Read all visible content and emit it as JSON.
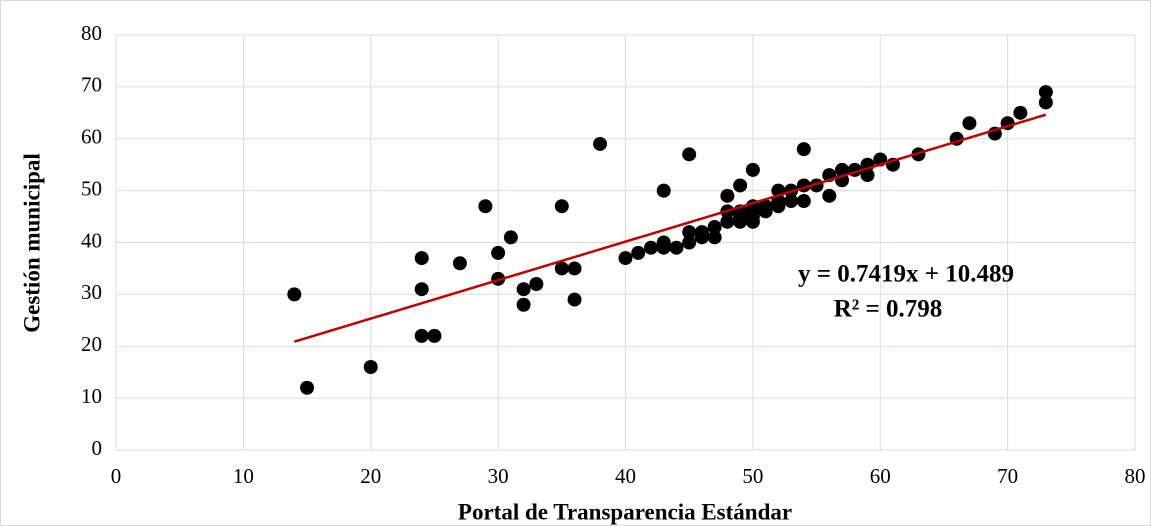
{
  "chart_data": {
    "type": "scatter",
    "x_label": "Portal de Transparencia Estándar",
    "y_label": "Gestión municipal",
    "xlim": [
      0,
      80
    ],
    "xticks": [
      0,
      10,
      20,
      30,
      40,
      50,
      60,
      70,
      80
    ],
    "ylim": [
      0,
      80
    ],
    "yticks": [
      0,
      10,
      20,
      30,
      40,
      50,
      60,
      70,
      80
    ],
    "grid": true,
    "color": "#000000",
    "x": [
      14,
      15,
      20,
      24,
      24,
      24,
      25,
      27,
      29,
      30,
      30,
      31,
      32,
      32,
      33,
      35,
      35,
      36,
      36,
      38,
      40,
      41,
      42,
      43,
      43,
      43,
      44,
      45,
      45,
      45,
      46,
      46,
      47,
      47,
      48,
      48,
      48,
      49,
      49,
      49,
      49,
      50,
      50,
      50,
      50,
      50,
      51,
      51,
      52,
      52,
      52,
      53,
      53,
      54,
      54,
      54,
      55,
      56,
      56,
      57,
      57,
      58,
      59,
      59,
      60,
      61,
      63,
      66,
      67,
      69,
      70,
      71,
      73,
      73
    ],
    "values": [
      30,
      12,
      16,
      37,
      31,
      22,
      22,
      36,
      47,
      38,
      33,
      41,
      31,
      28,
      32,
      47,
      35,
      35,
      29,
      59,
      37,
      38,
      39,
      50,
      40,
      39,
      39,
      57,
      42,
      40,
      41,
      42,
      43,
      41,
      49,
      46,
      44,
      51,
      46,
      45,
      44,
      54,
      47,
      46,
      45,
      44,
      47,
      46,
      50,
      48,
      47,
      50,
      48,
      58,
      51,
      48,
      51,
      53,
      49,
      54,
      52,
      54,
      55,
      53,
      56,
      55,
      57,
      60,
      63,
      61,
      63,
      65,
      69,
      67
    ],
    "trendline": {
      "slope": 0.7419,
      "intercept": 10.489,
      "color": "#c00000",
      "label": "y = 0.7419x + 10.489",
      "r2_label": "R² = 0.798"
    }
  }
}
